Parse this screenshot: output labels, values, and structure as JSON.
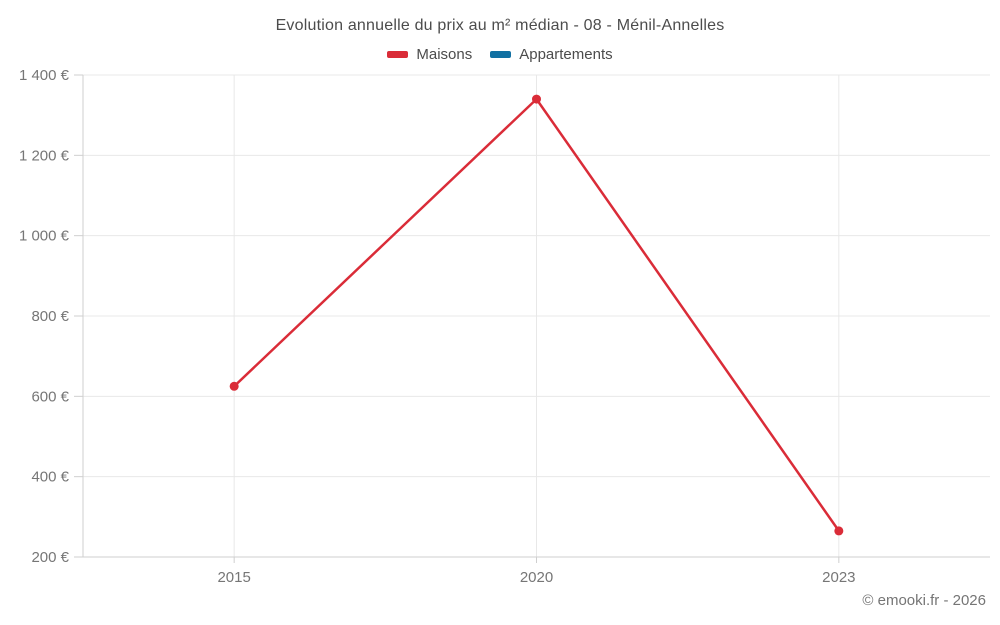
{
  "title": "Evolution annuelle du prix au m² médian - 08 - Ménil-Annelles",
  "legend": {
    "items": [
      {
        "label": "Maisons",
        "color": "#da2c38"
      },
      {
        "label": "Appartements",
        "color": "#1170a2"
      }
    ]
  },
  "footer": {
    "copyright": "© emooki.fr - 2026"
  },
  "colors": {
    "maisons": "#da2c38",
    "appartements": "#1170a2",
    "gridline": "#e8e8e8",
    "axis": "#cfcfcf",
    "tick_text": "#767676",
    "title_text": "#4c4c4c",
    "background": "#ffffff"
  },
  "chart_data": {
    "type": "line",
    "title": "Evolution annuelle du prix au m² médian - 08 - Ménil-Annelles",
    "x": [
      2015,
      2020,
      2023
    ],
    "x_tick_labels": [
      "2015",
      "2020",
      "2023"
    ],
    "series": [
      {
        "name": "Maisons",
        "color": "#da2c38",
        "values": [
          625,
          1340,
          265
        ]
      },
      {
        "name": "Appartements",
        "color": "#1170a2",
        "values": []
      }
    ],
    "xlabel": "",
    "ylabel": "",
    "ylim": [
      200,
      1400
    ],
    "y_ticks": [
      200,
      400,
      600,
      800,
      1000,
      1200,
      1400
    ],
    "y_tick_labels": [
      "200 €",
      "400 €",
      "600 €",
      "800 €",
      "1 000 €",
      "1 200 €",
      "1 400 €"
    ],
    "currency_suffix": " €",
    "grid": true,
    "legend_position": "top"
  }
}
